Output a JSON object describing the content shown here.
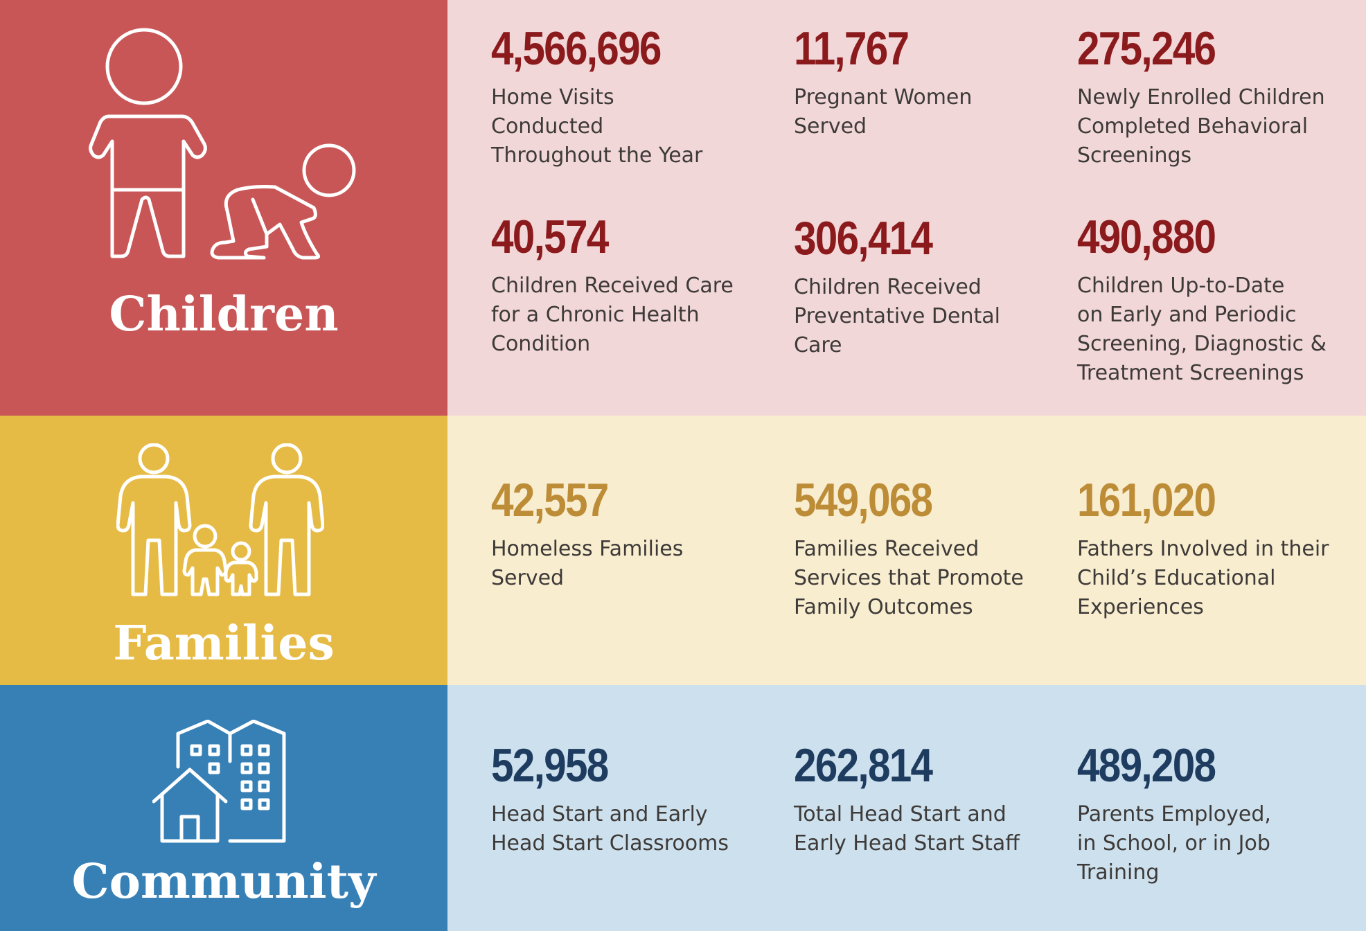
{
  "colors": {
    "children_panel": "#c95656",
    "children_bg": "#f2d7d8",
    "children_number": "#8b1a1d",
    "families_panel": "#e6bb45",
    "families_bg": "#f9edd0",
    "families_number": "#bd8c37",
    "community_panel": "#3780b6",
    "community_bg": "#cde0ed",
    "community_number": "#1e3c5f"
  },
  "children": {
    "title": "Children",
    "icon": "child-and-crawling-baby-icon",
    "stats": [
      {
        "number": "4,566,696",
        "label": "Home Visits\nConducted\nThroughout the Year"
      },
      {
        "number": "11,767",
        "label": "Pregnant Women\nServed"
      },
      {
        "number": "275,246",
        "label": "Newly Enrolled Children\nCompleted Behavioral\nScreenings"
      },
      {
        "number": "40,574",
        "label": "Children Received Care\nfor a Chronic Health\nCondition"
      },
      {
        "number": "306,414",
        "label": "Children Received\nPreventative Dental\nCare"
      },
      {
        "number": "490,880",
        "label": "Children Up-to-Date\non Early and Periodic\nScreening, Diagnostic &\nTreatment Screenings"
      }
    ]
  },
  "families": {
    "title": "Families",
    "icon": "family-icon",
    "stats": [
      {
        "number": "42,557",
        "label": "Homeless Families\nServed"
      },
      {
        "number": "549,068",
        "label": "Families Received\nServices that Promote\nFamily Outcomes"
      },
      {
        "number": "161,020",
        "label": "Fathers Involved in their\nChild’s Educational\nExperiences"
      }
    ]
  },
  "community": {
    "title": "Community",
    "icon": "house-and-buildings-icon",
    "stats": [
      {
        "number": "52,958",
        "label": "Head Start and Early\nHead Start Classrooms"
      },
      {
        "number": "262,814",
        "label": "Total Head Start and\nEarly Head Start Staff"
      },
      {
        "number": "489,208",
        "label": "Parents Employed,\nin School, or in Job\nTraining"
      }
    ]
  }
}
